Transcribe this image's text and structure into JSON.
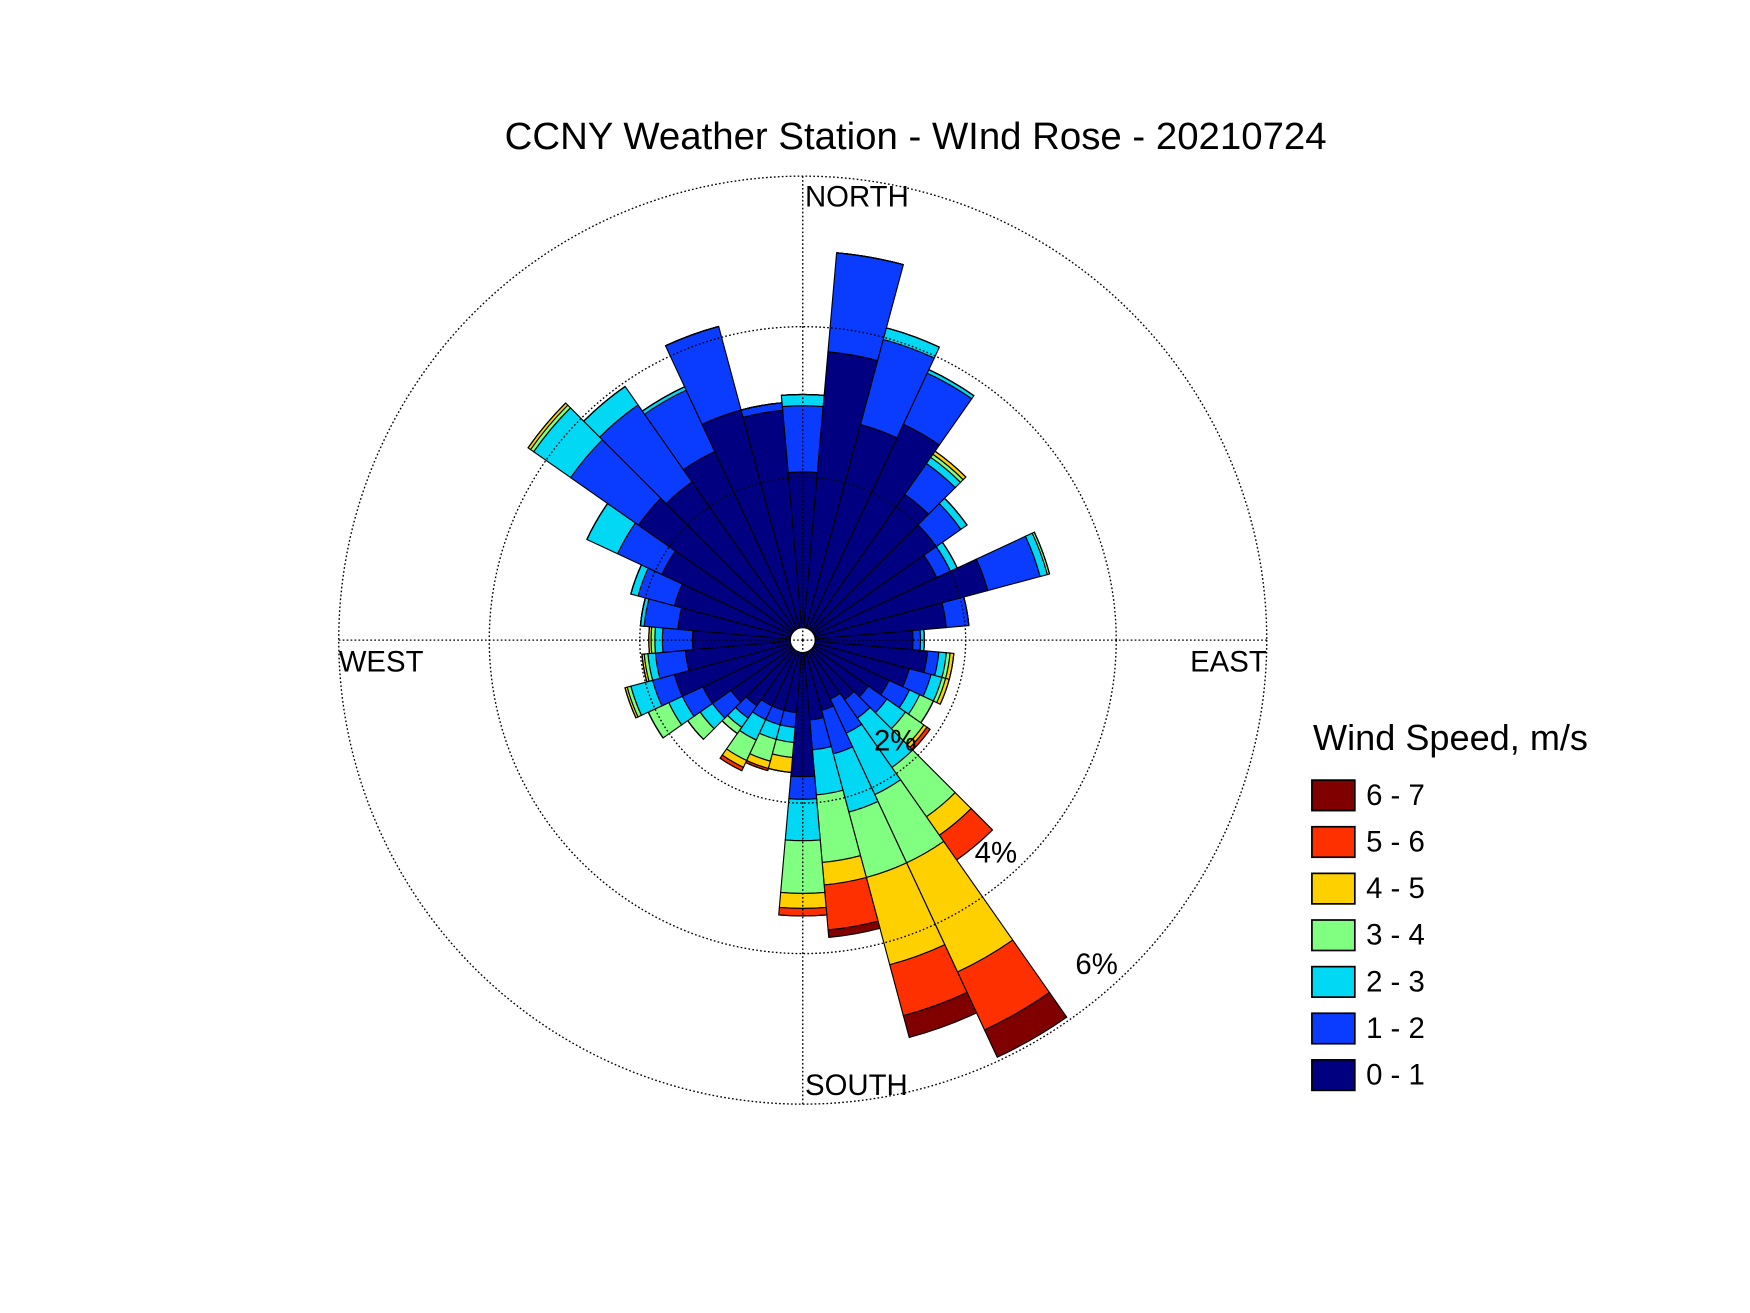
{
  "chart_data": {
    "type": "wind_rose",
    "title": "CCNY Weather Station - WInd Rose - 20210724",
    "legend_title": "Wind Speed, m/s",
    "legend_position": "right",
    "grid": true,
    "x": [
      0,
      10,
      20,
      30,
      40,
      50,
      60,
      70,
      80,
      90,
      100,
      110,
      120,
      130,
      140,
      150,
      160,
      170,
      180,
      190,
      200,
      210,
      220,
      230,
      240,
      250,
      260,
      270,
      280,
      290,
      300,
      310,
      320,
      330,
      340,
      350
    ],
    "xlim": [
      0,
      360
    ],
    "xticks": [
      {
        "value": 0,
        "label": "NORTH"
      },
      {
        "value": 90,
        "label": "EAST"
      },
      {
        "value": 180,
        "label": "SOUTH"
      },
      {
        "value": 270,
        "label": "WEST"
      }
    ],
    "ylim": [
      0,
      6
    ],
    "yticks": [
      {
        "value": 2,
        "label": "2%"
      },
      {
        "value": 4,
        "label": "4%"
      },
      {
        "value": 6,
        "label": "6%"
      }
    ],
    "series": [
      {
        "name": "0 - 1",
        "color": "#000080",
        "values": [
          2.07,
          3.68,
          2.8,
          3.0,
          2.2,
          2.0,
          1.8,
          2.38,
          1.75,
          1.3,
          1.5,
          1.3,
          1.1,
          0.9,
          0.8,
          0.7,
          0.8,
          0.9,
          1.65,
          0.8,
          0.8,
          0.8,
          0.9,
          1.0,
          1.3,
          1.6,
          1.4,
          1.3,
          1.5,
          1.6,
          1.9,
          2.5,
          2.4,
          2.6,
          3.0,
          2.9
        ]
      },
      {
        "name": "1 - 2",
        "color": "#0a3cff",
        "values": [
          0.88,
          1.32,
          1.17,
          0.75,
          0.5,
          0.4,
          0.2,
          0.72,
          0.3,
          0.1,
          0.15,
          0.3,
          0.3,
          0.3,
          0.3,
          0.5,
          0.6,
          0.4,
          0.3,
          0.2,
          0.2,
          0.2,
          0.2,
          0.3,
          0.3,
          0.3,
          0.4,
          0.4,
          0.45,
          0.5,
          0.65,
          1.1,
          1.25,
          0.9,
          1.15,
          0.1
        ]
      },
      {
        "name": "2 - 3",
        "color": "#00d8f4",
        "values": [
          0.15,
          0,
          0.16,
          0.05,
          0.1,
          0.1,
          0.1,
          0.1,
          0,
          0.05,
          0.1,
          0.15,
          0.15,
          0.3,
          0.8,
          0.9,
          0.8,
          0.6,
          0.55,
          0.2,
          0.2,
          0.3,
          0.15,
          0.2,
          0.2,
          0.3,
          0.1,
          0.1,
          0.05,
          0.1,
          0.45,
          0.6,
          0.3,
          0.05,
          0,
          0
        ]
      },
      {
        "name": "3 - 4",
        "color": "#80ff80",
        "values": [
          0,
          0,
          0,
          0,
          0.05,
          0,
          0,
          0.03,
          0,
          0,
          0.05,
          0.05,
          0.2,
          0.3,
          0.8,
          1.0,
          0.9,
          0.9,
          0.7,
          0.2,
          0.3,
          0.3,
          0.1,
          0.2,
          0.3,
          0.05,
          0.05,
          0.05,
          0,
          0,
          0,
          0.05,
          0,
          0,
          0,
          0
        ]
      },
      {
        "name": "4 - 5",
        "color": "#ffd000",
        "values": [
          0,
          0,
          0,
          0,
          0.05,
          0,
          0,
          0,
          0,
          0,
          0.05,
          0.05,
          0,
          0.05,
          0.3,
          1.6,
          1.2,
          0.3,
          0.2,
          0.2,
          0.1,
          0.1,
          0,
          0,
          0,
          0.03,
          0.03,
          0.03,
          0,
          0,
          0,
          0.04,
          0,
          0,
          0,
          0
        ]
      },
      {
        "name": "5 - 6",
        "color": "#ff3000",
        "values": [
          0,
          0,
          0,
          0,
          0,
          0,
          0,
          0,
          0,
          0,
          0,
          0,
          0,
          0.05,
          0.4,
          0.85,
          0.7,
          0.6,
          0.1,
          0,
          0.03,
          0.05,
          0,
          0,
          0,
          0,
          0,
          0,
          0,
          0,
          0,
          0,
          0,
          0,
          0,
          0
        ]
      },
      {
        "name": "6 - 7",
        "color": "#800000",
        "values": [
          0,
          0,
          0,
          0,
          0,
          0,
          0,
          0,
          0,
          0,
          0,
          0,
          0,
          0,
          0,
          0.4,
          0.3,
          0.1,
          0,
          0,
          0,
          0,
          0,
          0,
          0,
          0,
          0,
          0,
          0,
          0,
          0,
          0,
          0,
          0,
          0,
          0
        ]
      }
    ]
  }
}
